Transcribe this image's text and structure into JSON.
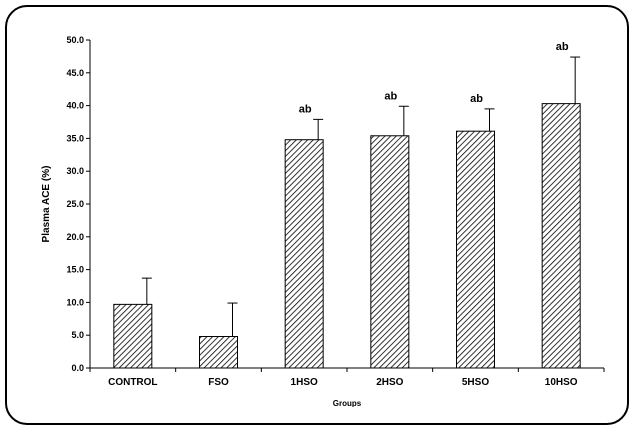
{
  "chart_data": {
    "type": "bar",
    "title": "",
    "xlabel": "Groups",
    "ylabel": "Plasma ACE (%)",
    "ylim": [
      0,
      50
    ],
    "yticks": [
      "0.0",
      "5.0",
      "10.0",
      "15.0",
      "20.0",
      "25.0",
      "30.0",
      "35.0",
      "40.0",
      "45.0",
      "50.0"
    ],
    "categories": [
      "CONTROL",
      "FSO",
      "1HSO",
      "2HSO",
      "5HSO",
      "10HSO"
    ],
    "values": [
      9.7,
      4.8,
      34.8,
      35.4,
      36.1,
      40.3
    ],
    "errors": [
      4.0,
      5.1,
      3.1,
      4.5,
      3.4,
      7.1
    ],
    "annotations": [
      "",
      "",
      "ab",
      "ab",
      "ab",
      "ab"
    ],
    "bar_fill": "diagonal hatch",
    "bar_color": "#000000",
    "grid": false,
    "legend": "none"
  }
}
